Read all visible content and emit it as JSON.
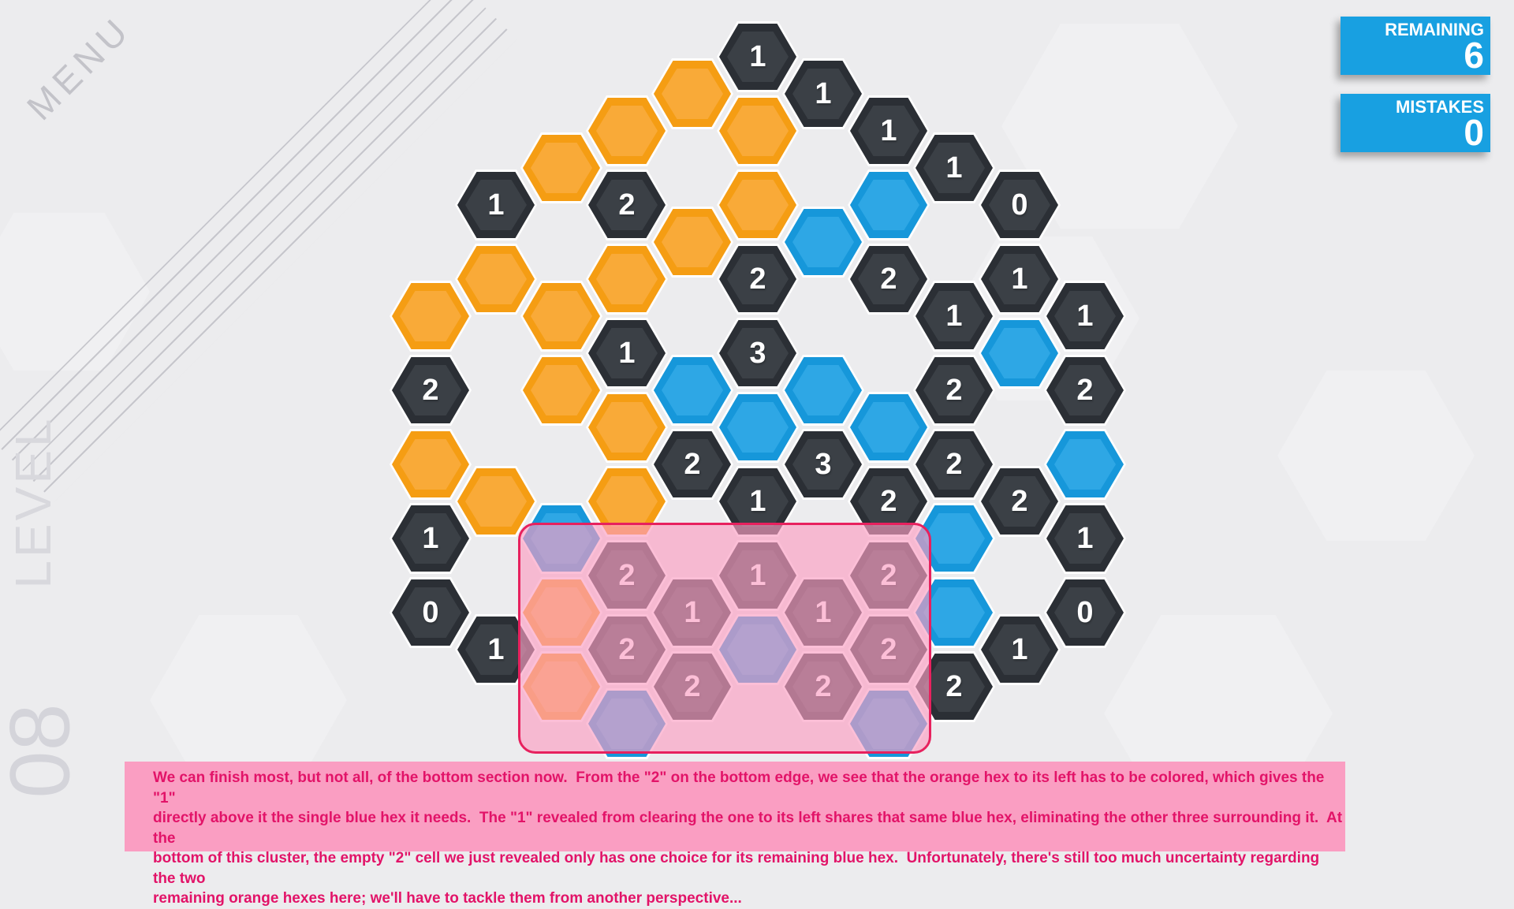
{
  "hud": {
    "menu_label": "MENU",
    "level_word": "LEVEL",
    "level_number": "08",
    "remaining": {
      "label": "REMAINING",
      "value": "6"
    },
    "mistakes": {
      "label": "MISTAKES",
      "value": "0"
    }
  },
  "colors": {
    "background": "#ececee",
    "orange_border": "#f59d13",
    "orange_fill": "#f9aa38",
    "dark_border": "#2b2f35",
    "dark_fill": "#3b4046",
    "blue_border": "#1697da",
    "blue_fill": "#2ea7e5",
    "badge_blue": "#18a0e1",
    "overlay_fill": "rgba(250,158,194,0.66)",
    "overlay_border": "#e7215e",
    "hint_background": "#fa9ec2",
    "hint_text": "#e21368"
  },
  "board": {
    "cells": [
      {
        "c": 6,
        "r": 0,
        "color": "dark",
        "label": "1"
      },
      {
        "c": 5,
        "r": 1,
        "color": "orange",
        "label": ""
      },
      {
        "c": 7,
        "r": 1,
        "color": "dark",
        "label": "1"
      },
      {
        "c": 4,
        "r": 2,
        "color": "orange",
        "label": ""
      },
      {
        "c": 6,
        "r": 2,
        "color": "orange",
        "label": ""
      },
      {
        "c": 8,
        "r": 2,
        "color": "dark",
        "label": "1"
      },
      {
        "c": 3,
        "r": 3,
        "color": "orange",
        "label": ""
      },
      {
        "c": 9,
        "r": 3,
        "color": "dark",
        "label": "1"
      },
      {
        "c": 2,
        "r": 4,
        "color": "dark",
        "label": "1"
      },
      {
        "c": 4,
        "r": 4,
        "color": "dark",
        "label": "2"
      },
      {
        "c": 6,
        "r": 4,
        "color": "orange",
        "label": ""
      },
      {
        "c": 8,
        "r": 4,
        "color": "blue",
        "label": ""
      },
      {
        "c": 10,
        "r": 4,
        "color": "dark",
        "label": "0"
      },
      {
        "c": 5,
        "r": 5,
        "color": "orange",
        "label": ""
      },
      {
        "c": 7,
        "r": 5,
        "color": "blue",
        "label": ""
      },
      {
        "c": 2,
        "r": 6,
        "color": "orange",
        "label": ""
      },
      {
        "c": 4,
        "r": 6,
        "color": "orange",
        "label": ""
      },
      {
        "c": 6,
        "r": 6,
        "color": "dark",
        "label": "2"
      },
      {
        "c": 8,
        "r": 6,
        "color": "dark",
        "label": "2"
      },
      {
        "c": 10,
        "r": 6,
        "color": "dark",
        "label": "1"
      },
      {
        "c": 1,
        "r": 7,
        "color": "orange",
        "label": ""
      },
      {
        "c": 3,
        "r": 7,
        "color": "orange",
        "label": ""
      },
      {
        "c": 9,
        "r": 7,
        "color": "dark",
        "label": "1"
      },
      {
        "c": 11,
        "r": 7,
        "color": "dark",
        "label": "1"
      },
      {
        "c": 4,
        "r": 8,
        "color": "dark",
        "label": "1"
      },
      {
        "c": 6,
        "r": 8,
        "color": "dark",
        "label": "3"
      },
      {
        "c": 10,
        "r": 8,
        "color": "blue",
        "label": ""
      },
      {
        "c": 1,
        "r": 9,
        "color": "dark",
        "label": "2"
      },
      {
        "c": 3,
        "r": 9,
        "color": "orange",
        "label": ""
      },
      {
        "c": 5,
        "r": 9,
        "color": "blue",
        "label": ""
      },
      {
        "c": 7,
        "r": 9,
        "color": "blue",
        "label": ""
      },
      {
        "c": 9,
        "r": 9,
        "color": "dark",
        "label": "2"
      },
      {
        "c": 11,
        "r": 9,
        "color": "dark",
        "label": "2"
      },
      {
        "c": 4,
        "r": 10,
        "color": "orange",
        "label": ""
      },
      {
        "c": 6,
        "r": 10,
        "color": "blue",
        "label": ""
      },
      {
        "c": 8,
        "r": 10,
        "color": "blue",
        "label": ""
      },
      {
        "c": 1,
        "r": 11,
        "color": "orange",
        "label": ""
      },
      {
        "c": 5,
        "r": 11,
        "color": "dark",
        "label": "2"
      },
      {
        "c": 7,
        "r": 11,
        "color": "dark",
        "label": "3"
      },
      {
        "c": 9,
        "r": 11,
        "color": "dark",
        "label": "2"
      },
      {
        "c": 11,
        "r": 11,
        "color": "blue",
        "label": ""
      },
      {
        "c": 2,
        "r": 12,
        "color": "orange",
        "label": ""
      },
      {
        "c": 4,
        "r": 12,
        "color": "orange",
        "label": ""
      },
      {
        "c": 6,
        "r": 12,
        "color": "dark",
        "label": "1"
      },
      {
        "c": 8,
        "r": 12,
        "color": "dark",
        "label": "2"
      },
      {
        "c": 10,
        "r": 12,
        "color": "dark",
        "label": "2"
      },
      {
        "c": 1,
        "r": 13,
        "color": "dark",
        "label": "1"
      },
      {
        "c": 3,
        "r": 13,
        "color": "blue",
        "label": ""
      },
      {
        "c": 9,
        "r": 13,
        "color": "blue",
        "label": ""
      },
      {
        "c": 11,
        "r": 13,
        "color": "dark",
        "label": "1"
      },
      {
        "c": 4,
        "r": 14,
        "color": "dark",
        "label": "2"
      },
      {
        "c": 6,
        "r": 14,
        "color": "dark",
        "label": "1"
      },
      {
        "c": 8,
        "r": 14,
        "color": "dark",
        "label": "2"
      },
      {
        "c": 1,
        "r": 15,
        "color": "dark",
        "label": "0"
      },
      {
        "c": 3,
        "r": 15,
        "color": "orange",
        "label": ""
      },
      {
        "c": 5,
        "r": 15,
        "color": "dark",
        "label": "1"
      },
      {
        "c": 7,
        "r": 15,
        "color": "dark",
        "label": "1"
      },
      {
        "c": 9,
        "r": 15,
        "color": "blue",
        "label": ""
      },
      {
        "c": 11,
        "r": 15,
        "color": "dark",
        "label": "0"
      },
      {
        "c": 2,
        "r": 16,
        "color": "dark",
        "label": "1"
      },
      {
        "c": 4,
        "r": 16,
        "color": "dark",
        "label": "2"
      },
      {
        "c": 6,
        "r": 16,
        "color": "blue",
        "label": ""
      },
      {
        "c": 8,
        "r": 16,
        "color": "dark",
        "label": "2"
      },
      {
        "c": 10,
        "r": 16,
        "color": "dark",
        "label": "1"
      },
      {
        "c": 3,
        "r": 17,
        "color": "orange",
        "label": ""
      },
      {
        "c": 5,
        "r": 17,
        "color": "dark",
        "label": "2"
      },
      {
        "c": 7,
        "r": 17,
        "color": "dark",
        "label": "2"
      },
      {
        "c": 9,
        "r": 17,
        "color": "dark",
        "label": "2"
      },
      {
        "c": 4,
        "r": 18,
        "color": "blue",
        "label": ""
      },
      {
        "c": 8,
        "r": 18,
        "color": "blue",
        "label": ""
      }
    ]
  },
  "hint": {
    "lines": [
      "We can finish most, but not all, of the bottom section now.  From the \"2\" on the bottom edge, we see that the orange hex to its left has to be colored, which gives the \"1\"",
      "directly above it the single blue hex it needs.  The \"1\" revealed from clearing the one to its left shares that same blue hex, eliminating the other three surrounding it.  At the",
      "bottom of this cluster, the empty \"2\" cell we just revealed only has one choice for its remaining blue hex.  Unfortunately, there's still too much uncertainty regarding the two",
      "remaining orange hexes here; we'll have to tackle them from another perspective..."
    ]
  }
}
